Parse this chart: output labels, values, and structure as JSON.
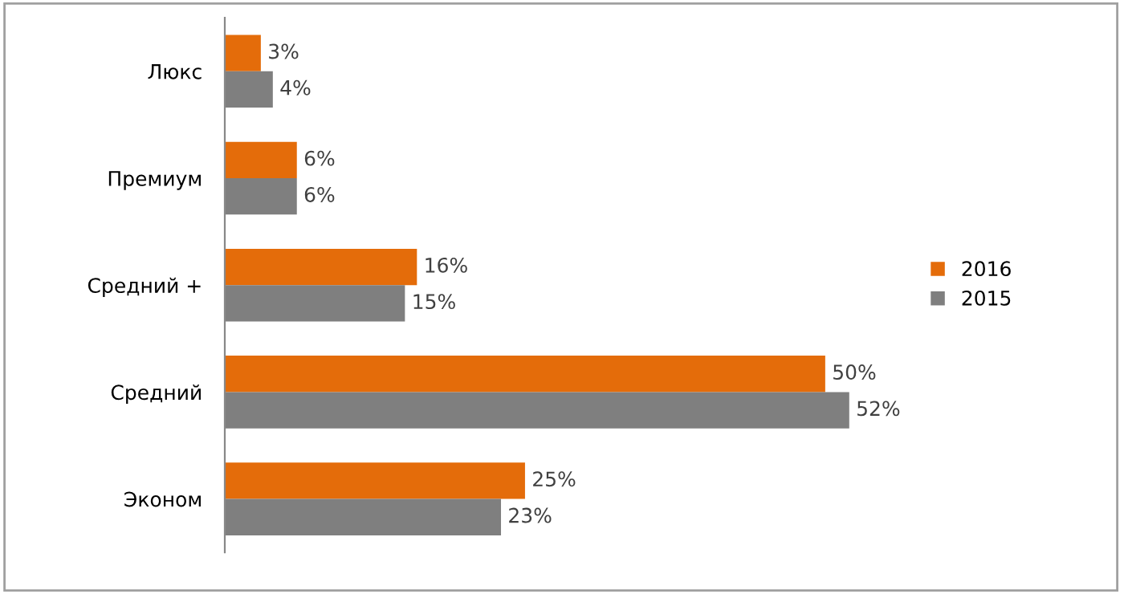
{
  "chart_data": {
    "type": "bar",
    "orientation": "horizontal",
    "categories": [
      "Люкс",
      "Премиум",
      "Средний +",
      "Средний",
      "Эконом"
    ],
    "series": [
      {
        "name": "2016",
        "color": "#e46c0a",
        "values": [
          3,
          6,
          16,
          50,
          25
        ],
        "value_labels": [
          "3%",
          "6%",
          "16%",
          "50%",
          "25%"
        ]
      },
      {
        "name": "2015",
        "color": "#7f7f7f",
        "values": [
          4,
          6,
          15,
          52,
          23
        ],
        "value_labels": [
          "4%",
          "6%",
          "15%",
          "52%",
          "23%"
        ]
      }
    ],
    "legend": "right"
  }
}
